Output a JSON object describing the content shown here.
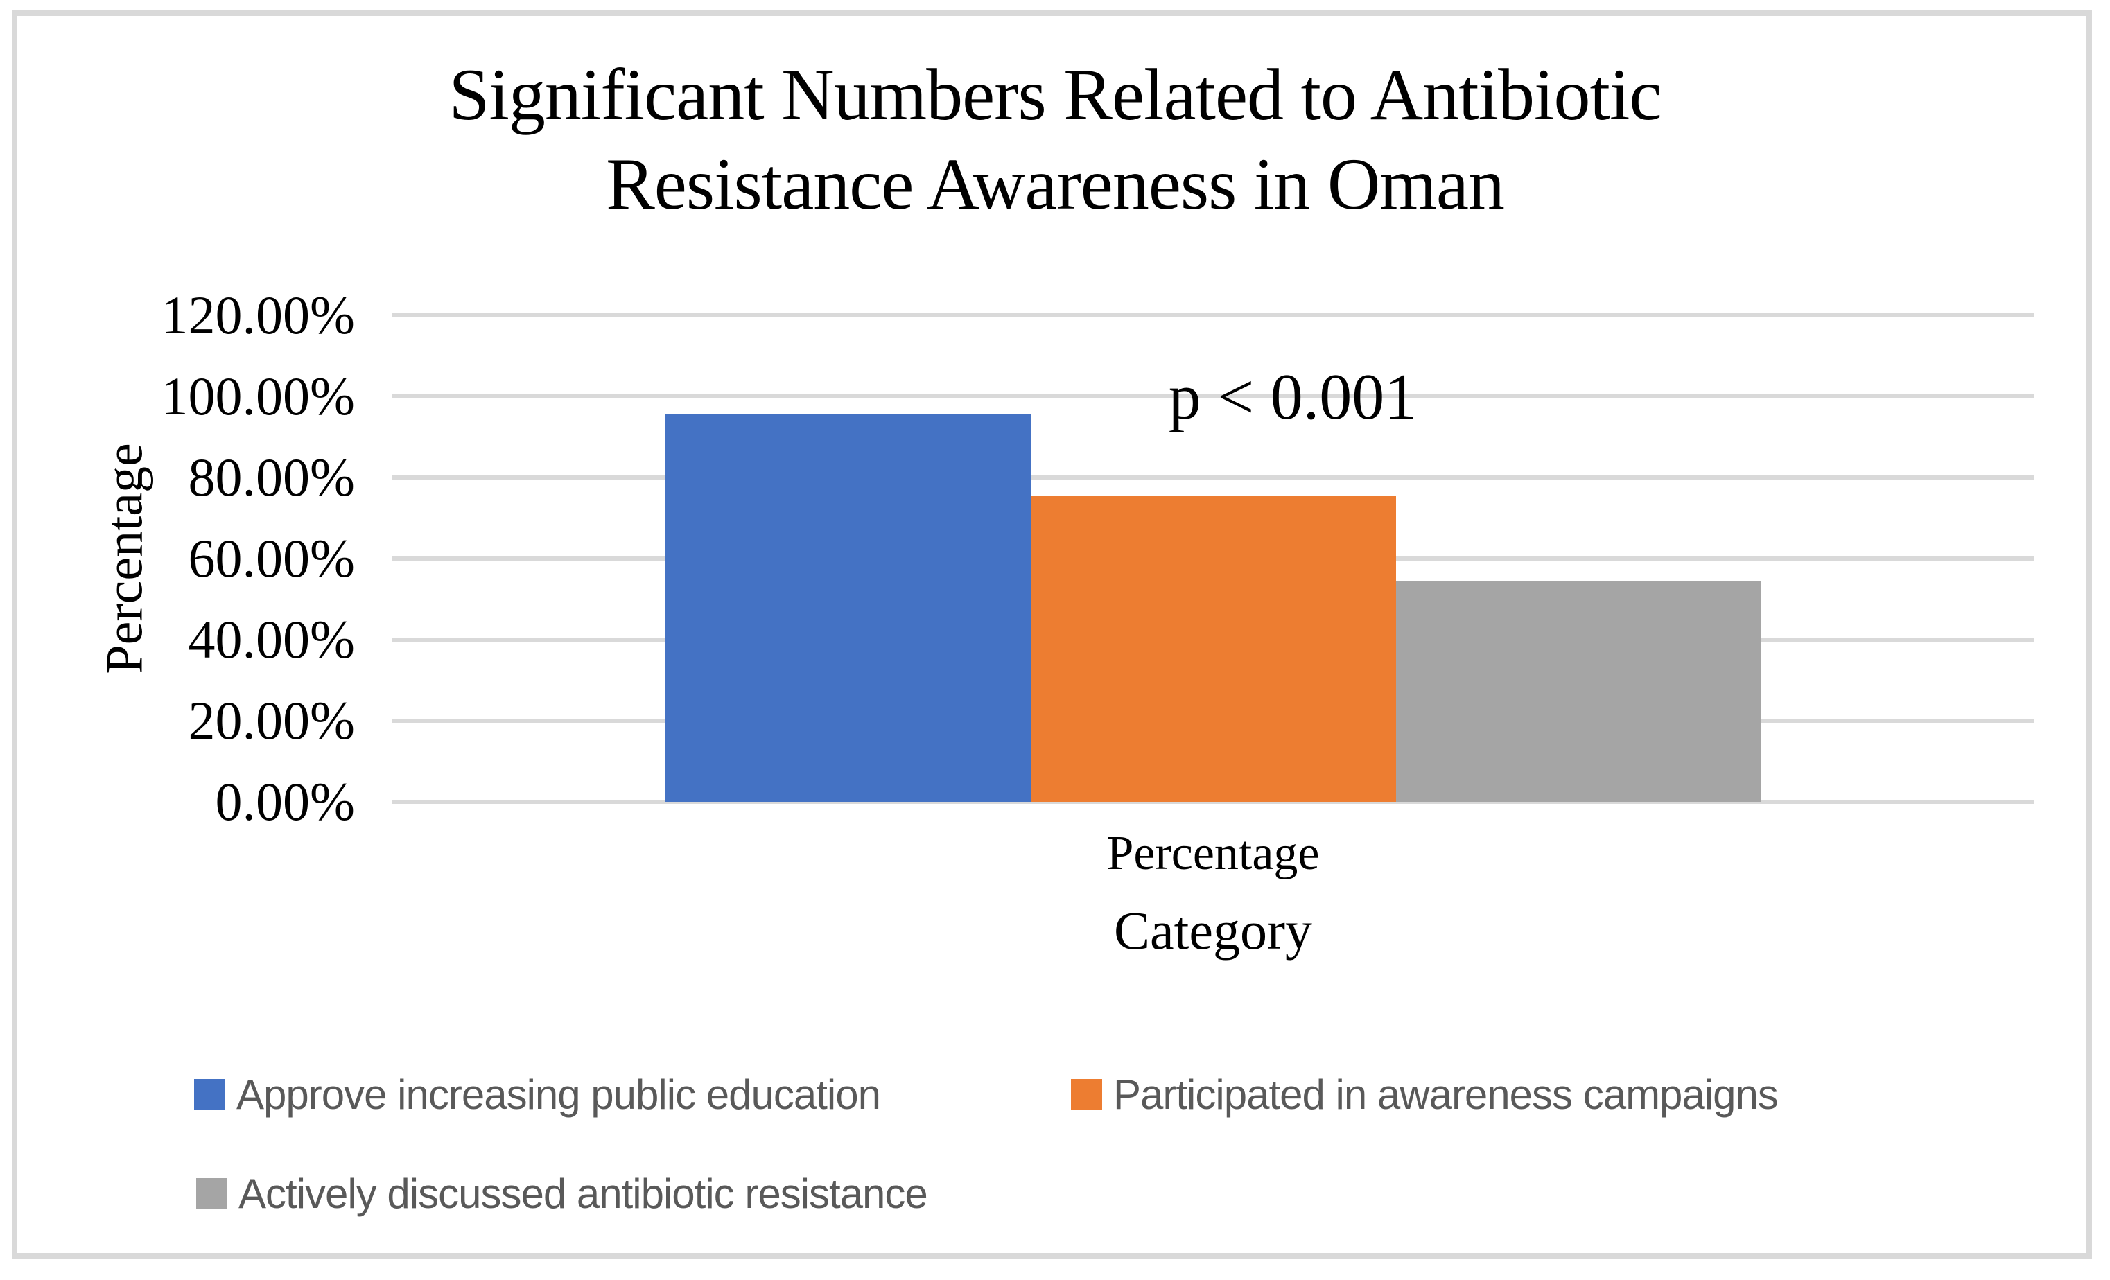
{
  "chart_data": {
    "type": "bar",
    "title": "Significant Numbers Related to Antibiotic Resistance Awareness in Oman",
    "title_lines": [
      "Significant Numbers Related to Antibiotic",
      "Resistance Awareness in Oman"
    ],
    "categories": [
      "Percentage"
    ],
    "series": [
      {
        "name": "Approve increasing public education",
        "values": [
          95.5
        ],
        "color": "#4472C4"
      },
      {
        "name": "Participated in awareness campaigns",
        "values": [
          75.5
        ],
        "color": "#ED7D31"
      },
      {
        "name": "Actively discussed antibiotic resistance",
        "values": [
          54.5
        ],
        "color": "#A5A5A5"
      }
    ],
    "xlabel": "Category",
    "ylabel": "Percentage",
    "x_tick_label": "Percentage",
    "ylim": [
      0,
      120
    ],
    "ytick_step": 20,
    "ytick_labels": [
      "0.00%",
      "20.00%",
      "40.00%",
      "60.00%",
      "80.00%",
      "100.00%",
      "120.00%"
    ],
    "annotation": "p < 0.001",
    "legend_position": "bottom",
    "grid": "horizontal",
    "gridline_color": "#D9D9D9",
    "border_color": "#D9D9D9",
    "legend_text_color": "#595959"
  }
}
